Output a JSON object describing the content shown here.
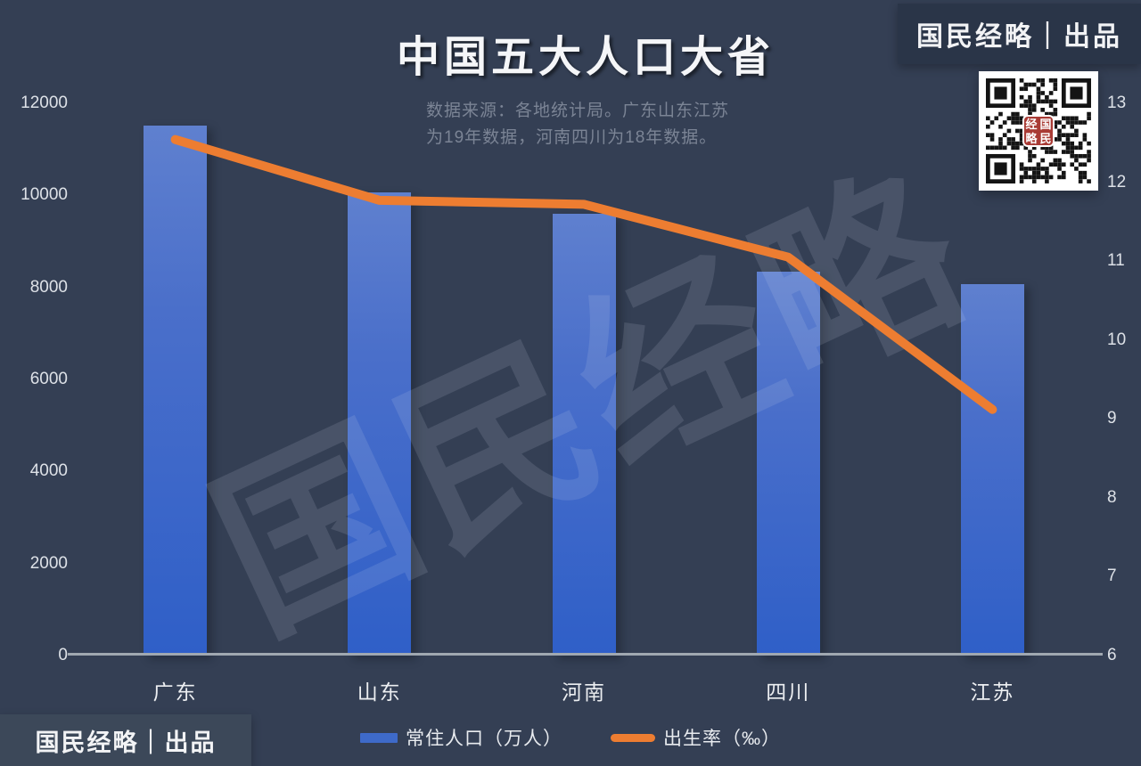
{
  "header": {
    "title": "中国五大人口大省",
    "subtitle_line1": "数据来源：各地统计局。广东山东江苏",
    "subtitle_line2": "为19年数据，河南四川为18年数据。"
  },
  "branding": {
    "banner_top_label": "国民经略｜出品",
    "banner_bottom_label": "国民经略｜出品",
    "watermark_text": "国民经略",
    "qr_badge_text": "国民经略"
  },
  "colors": {
    "background": "#343f54",
    "banner_top_bg": "#2a3548",
    "banner_bottom_bg": "#3c4859",
    "bar_top": "#5f80cf",
    "bar_bottom": "#2f5fc8",
    "line": "#ed7d31",
    "axis_line": "#a0a8b1",
    "qr_badge_bg": "#a93b35"
  },
  "chart_data": {
    "type": "combo",
    "title": "中国五大人口大省",
    "categories": [
      "广东",
      "山东",
      "河南",
      "四川",
      "江苏"
    ],
    "series": [
      {
        "name": "常住人口（万人）",
        "type": "bar",
        "axis": "left",
        "values": [
          11521,
          10070,
          9605,
          8341,
          8070
        ],
        "color": "#3e6ac9"
      },
      {
        "name": "出生率（‰）",
        "type": "line",
        "axis": "right",
        "values": [
          12.54,
          11.77,
          11.72,
          11.05,
          9.12
        ],
        "color": "#ed7d31"
      }
    ],
    "left_axis": {
      "min": 0,
      "max": 12000,
      "step": 2000,
      "ticks": [
        0,
        2000,
        4000,
        6000,
        8000,
        10000,
        12000
      ]
    },
    "right_axis": {
      "min": 6,
      "max": 13,
      "step": 1,
      "ticks": [
        6,
        7,
        8,
        9,
        10,
        11,
        12,
        13
      ]
    },
    "grid": false,
    "legend_position": "bottom"
  }
}
